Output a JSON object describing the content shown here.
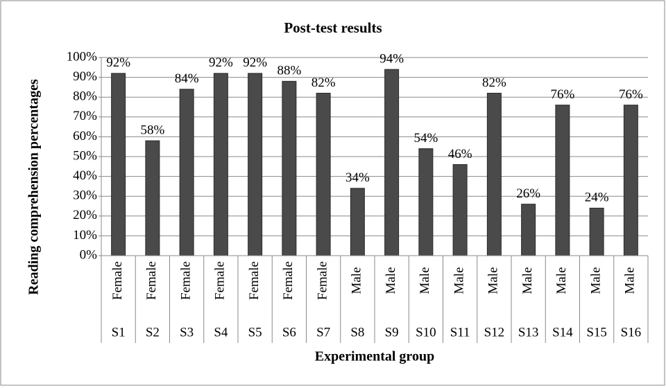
{
  "chart_data": {
    "type": "bar",
    "title": "Post-test results",
    "x_label": "Experimental group",
    "y_label": "Reading comprehension percentages",
    "categories": [
      "S1",
      "S2",
      "S3",
      "S4",
      "S5",
      "S6",
      "S7",
      "S8",
      "S9",
      "S10",
      "S11",
      "S12",
      "S13",
      "S14",
      "S15",
      "S16"
    ],
    "category_groups": [
      "Female",
      "Female",
      "Female",
      "Female",
      "Female",
      "Female",
      "Female",
      "Male",
      "Male",
      "Male",
      "Male",
      "Male",
      "Male",
      "Male",
      "Male",
      "Male"
    ],
    "values": [
      92,
      58,
      84,
      92,
      92,
      88,
      82,
      34,
      94,
      54,
      46,
      82,
      26,
      76,
      24,
      76
    ],
    "value_labels": [
      "92%",
      "58%",
      "84%",
      "92%",
      "92%",
      "88%",
      "82%",
      "34%",
      "94%",
      "54%",
      "46%",
      "82%",
      "26%",
      "76%",
      "24%",
      "76%"
    ],
    "color": "#4a4a4a",
    "ylim": [
      0,
      100
    ],
    "yticks": [
      {
        "value": 0,
        "label": "0%"
      },
      {
        "value": 10,
        "label": "10%"
      },
      {
        "value": 20,
        "label": "20%"
      },
      {
        "value": 30,
        "label": "30%"
      },
      {
        "value": 40,
        "label": "40%"
      },
      {
        "value": 50,
        "label": "50%"
      },
      {
        "value": 60,
        "label": "60%"
      },
      {
        "value": 70,
        "label": "70%"
      },
      {
        "value": 80,
        "label": "80%"
      },
      {
        "value": 90,
        "label": "90%"
      },
      {
        "value": 100,
        "label": "100%"
      }
    ],
    "grid": true
  }
}
